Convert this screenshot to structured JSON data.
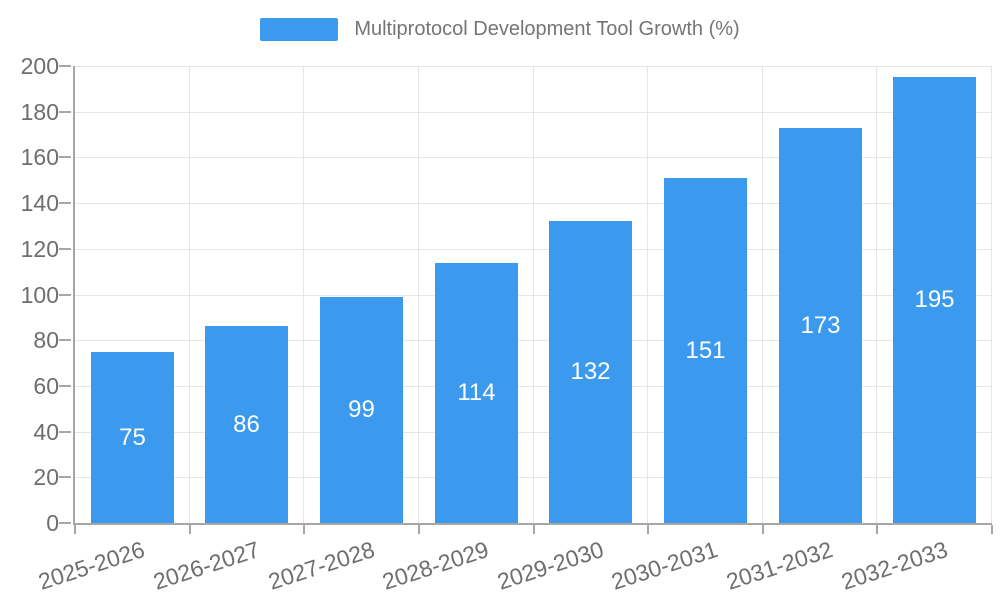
{
  "chart_data": {
    "type": "bar",
    "title": "Multiprotocol Development Tool Growth (%)",
    "legend_position": "top-center",
    "categories": [
      "2025-2026",
      "2026-2027",
      "2027-2028",
      "2028-2029",
      "2029-2030",
      "2030-2031",
      "2031-2032",
      "2032-2033"
    ],
    "values": [
      75,
      86,
      99,
      114,
      132,
      151,
      173,
      195
    ],
    "xlabel": "",
    "ylabel": "",
    "ylim": [
      0,
      200
    ],
    "yticks": [
      0,
      20,
      40,
      60,
      80,
      100,
      120,
      140,
      160,
      180,
      200
    ],
    "grid": true,
    "bar_color": "#3b9aee",
    "value_label_color": "#ffffff"
  },
  "style": {
    "axis_line_color": "#a6a6a6",
    "grid_line_color": "#e6e6e6",
    "tick_text_color": "#6e6e6e",
    "legend_text_color": "#757575",
    "background_color": "#ffffff"
  }
}
